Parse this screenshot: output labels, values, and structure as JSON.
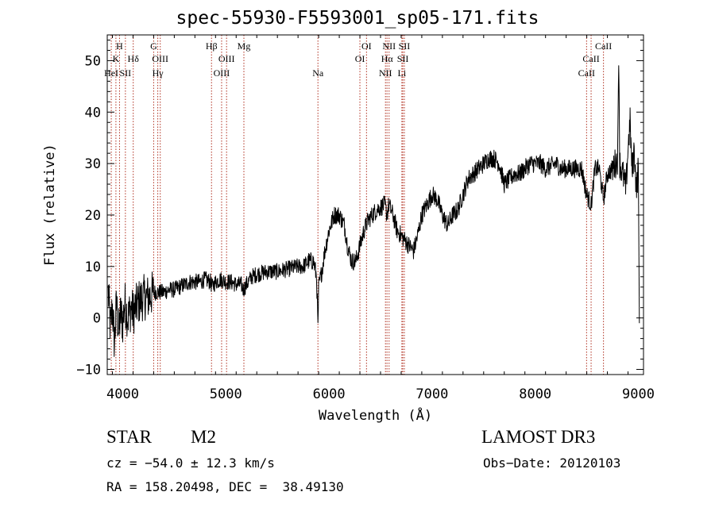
{
  "chart_data": {
    "type": "line",
    "title": "spec-55930-F5593001_sp05-171.fits",
    "xlabel": "Wavelength (Å)",
    "ylabel": "Flux (relative)",
    "xlim": [
      3850,
      9050
    ],
    "ylim": [
      -11,
      55
    ],
    "xticks": [
      4000,
      5000,
      6000,
      7000,
      8000,
      9000
    ],
    "yticks": [
      -10,
      0,
      10,
      20,
      30,
      40,
      50
    ],
    "grid": false,
    "legend": "none",
    "line_color": "#000000",
    "marker_color": "#b03020",
    "series": [
      {
        "name": "flux",
        "anchors": [
          [
            3860,
            5
          ],
          [
            3880,
            -2
          ],
          [
            3900,
            2
          ],
          [
            3920,
            -5
          ],
          [
            3940,
            3
          ],
          [
            3960,
            -3
          ],
          [
            3980,
            1
          ],
          [
            4000,
            -1
          ],
          [
            4020,
            3
          ],
          [
            4050,
            0
          ],
          [
            4080,
            2
          ],
          [
            4100,
            1
          ],
          [
            4150,
            3
          ],
          [
            4200,
            4
          ],
          [
            4250,
            4
          ],
          [
            4300,
            5
          ],
          [
            4350,
            5
          ],
          [
            4400,
            5
          ],
          [
            4450,
            5.5
          ],
          [
            4500,
            5.5
          ],
          [
            4550,
            6
          ],
          [
            4600,
            6.5
          ],
          [
            4650,
            7
          ],
          [
            4700,
            7
          ],
          [
            4750,
            7
          ],
          [
            4800,
            7.5
          ],
          [
            4850,
            7
          ],
          [
            4870,
            6
          ],
          [
            4900,
            7
          ],
          [
            4950,
            7.5
          ],
          [
            5000,
            7
          ],
          [
            5050,
            7
          ],
          [
            5100,
            6.5
          ],
          [
            5150,
            6.5
          ],
          [
            5170,
            5.5
          ],
          [
            5200,
            6.5
          ],
          [
            5250,
            8
          ],
          [
            5300,
            8.5
          ],
          [
            5400,
            9
          ],
          [
            5500,
            9
          ],
          [
            5600,
            9.5
          ],
          [
            5700,
            10
          ],
          [
            5750,
            10
          ],
          [
            5800,
            11
          ],
          [
            5850,
            11
          ],
          [
            5880,
            8
          ],
          [
            5893,
            -2
          ],
          [
            5900,
            6
          ],
          [
            5930,
            9
          ],
          [
            5960,
            13
          ],
          [
            6000,
            17
          ],
          [
            6050,
            20
          ],
          [
            6100,
            20
          ],
          [
            6150,
            18
          ],
          [
            6180,
            14
          ],
          [
            6220,
            11
          ],
          [
            6260,
            11
          ],
          [
            6300,
            14
          ],
          [
            6340,
            17
          ],
          [
            6380,
            19
          ],
          [
            6420,
            20
          ],
          [
            6460,
            21
          ],
          [
            6500,
            21.5
          ],
          [
            6540,
            22
          ],
          [
            6563,
            20
          ],
          [
            6580,
            22
          ],
          [
            6620,
            20
          ],
          [
            6660,
            17
          ],
          [
            6700,
            16
          ],
          [
            6740,
            15
          ],
          [
            6780,
            14
          ],
          [
            6820,
            13
          ],
          [
            6860,
            16
          ],
          [
            6900,
            20
          ],
          [
            6950,
            22
          ],
          [
            7000,
            24
          ],
          [
            7050,
            23
          ],
          [
            7100,
            20
          ],
          [
            7150,
            18
          ],
          [
            7200,
            20
          ],
          [
            7250,
            21
          ],
          [
            7300,
            24
          ],
          [
            7350,
            27
          ],
          [
            7400,
            28
          ],
          [
            7450,
            29
          ],
          [
            7500,
            30
          ],
          [
            7550,
            31
          ],
          [
            7600,
            31
          ],
          [
            7650,
            30
          ],
          [
            7700,
            26
          ],
          [
            7750,
            27
          ],
          [
            7800,
            28
          ],
          [
            7850,
            28
          ],
          [
            7900,
            29
          ],
          [
            7950,
            30
          ],
          [
            8000,
            30
          ],
          [
            8050,
            30
          ],
          [
            8100,
            29
          ],
          [
            8150,
            29.5
          ],
          [
            8200,
            30
          ],
          [
            8250,
            29
          ],
          [
            8300,
            29
          ],
          [
            8350,
            29
          ],
          [
            8400,
            29
          ],
          [
            8450,
            29
          ],
          [
            8498,
            24
          ],
          [
            8542,
            22
          ],
          [
            8580,
            29
          ],
          [
            8620,
            29
          ],
          [
            8662,
            23
          ],
          [
            8700,
            28
          ],
          [
            8750,
            29
          ],
          [
            8800,
            31
          ],
          [
            8810,
            52
          ],
          [
            8820,
            30
          ],
          [
            8850,
            28
          ],
          [
            8880,
            25
          ],
          [
            8900,
            33
          ],
          [
            8920,
            38
          ],
          [
            8940,
            28
          ],
          [
            8960,
            33
          ],
          [
            8980,
            25
          ],
          [
            9000,
            29
          ],
          [
            9010,
            -1
          ]
        ]
      }
    ],
    "line_markers": [
      {
        "wl": 3934,
        "label": "K"
      },
      {
        "wl": 3889,
        "label": "HeI"
      },
      {
        "wl": 3969,
        "label": "H"
      },
      {
        "wl": 4026,
        "label": "SII"
      },
      {
        "wl": 4102,
        "label": "Hδ"
      },
      {
        "wl": 4300,
        "label": "G"
      },
      {
        "wl": 4340,
        "label": "Hγ"
      },
      {
        "wl": 4364,
        "label": "OIII"
      },
      {
        "wl": 4861,
        "label": "Hβ"
      },
      {
        "wl": 4959,
        "label": "OIII"
      },
      {
        "wl": 5007,
        "label": "OIII"
      },
      {
        "wl": 5175,
        "label": "Mg"
      },
      {
        "wl": 5893,
        "label": "Na"
      },
      {
        "wl": 6300,
        "label": "OI"
      },
      {
        "wl": 6364,
        "label": "OI"
      },
      {
        "wl": 6548,
        "label": "NII"
      },
      {
        "wl": 6563,
        "label": "Hα"
      },
      {
        "wl": 6583,
        "label": "NII"
      },
      {
        "wl": 6707,
        "label": "Li"
      },
      {
        "wl": 6716,
        "label": "SII"
      },
      {
        "wl": 6731,
        "label": "SII"
      },
      {
        "wl": 8498,
        "label": "CaII"
      },
      {
        "wl": 8542,
        "label": "CaII"
      },
      {
        "wl": 8662,
        "label": "CaII"
      }
    ],
    "line_label_rows": [
      [
        {
          "label": "H",
          "wl": 3969
        },
        {
          "label": "G",
          "wl": 4300
        },
        {
          "label": "Hβ",
          "wl": 4861
        },
        {
          "label": "Mg",
          "wl": 5175
        },
        {
          "label": "OI",
          "wl": 6364
        },
        {
          "label": "NII",
          "wl": 6583
        },
        {
          "label": "SII",
          "wl": 6731
        },
        {
          "label": "CaII",
          "wl": 8662
        }
      ],
      [
        {
          "label": "K",
          "wl": 3934
        },
        {
          "label": "Hδ",
          "wl": 4102
        },
        {
          "label": "OIII",
          "wl": 4364
        },
        {
          "label": "OIII",
          "wl": 5007
        },
        {
          "label": "OI",
          "wl": 6300
        },
        {
          "label": "Hα",
          "wl": 6563
        },
        {
          "label": "SII",
          "wl": 6716
        },
        {
          "label": "CaII",
          "wl": 8542
        }
      ],
      [
        {
          "label": "HeI",
          "wl": 3889
        },
        {
          "label": "SII",
          "wl": 4026
        },
        {
          "label": "Hγ",
          "wl": 4340
        },
        {
          "label": "OIII",
          "wl": 4959
        },
        {
          "label": "Na",
          "wl": 5893
        },
        {
          "label": "NII",
          "wl": 6548
        },
        {
          "label": "Li",
          "wl": 6707
        },
        {
          "label": "CaII",
          "wl": 8498
        }
      ]
    ]
  },
  "info": {
    "object_class": "STAR",
    "subclass": "M2",
    "survey": "LAMOST DR3",
    "cz": "cz = −54.0 ± 12.3 km/s",
    "obs_date": "Obs−Date: 20120103",
    "coords": "RA = 158.20498, DEC =  38.49130"
  }
}
